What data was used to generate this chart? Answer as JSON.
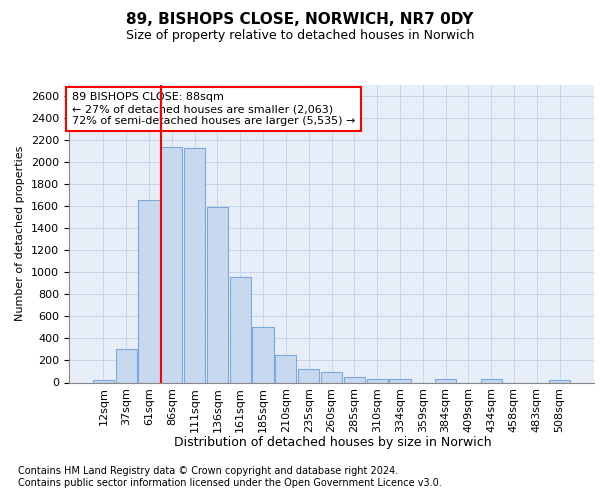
{
  "title": "89, BISHOPS CLOSE, NORWICH, NR7 0DY",
  "subtitle": "Size of property relative to detached houses in Norwich",
  "xlabel": "Distribution of detached houses by size in Norwich",
  "ylabel": "Number of detached properties",
  "footnote1": "Contains HM Land Registry data © Crown copyright and database right 2024.",
  "footnote2": "Contains public sector information licensed under the Open Government Licence v3.0.",
  "annotation_line1": "89 BISHOPS CLOSE: 88sqm",
  "annotation_line2": "← 27% of detached houses are smaller (2,063)",
  "annotation_line3": "72% of semi-detached houses are larger (5,535) →",
  "bar_color": "#c8d8ee",
  "bar_edge_color": "#7aaadd",
  "categories": [
    "12sqm",
    "37sqm",
    "61sqm",
    "86sqm",
    "111sqm",
    "136sqm",
    "161sqm",
    "185sqm",
    "210sqm",
    "235sqm",
    "260sqm",
    "285sqm",
    "310sqm",
    "334sqm",
    "359sqm",
    "384sqm",
    "409sqm",
    "434sqm",
    "458sqm",
    "483sqm",
    "508sqm"
  ],
  "values": [
    22,
    300,
    1660,
    2140,
    2130,
    1590,
    960,
    505,
    250,
    120,
    95,
    50,
    30,
    30,
    0,
    30,
    0,
    30,
    0,
    0,
    22
  ],
  "red_line_bin_index": 3,
  "ylim": [
    0,
    2700
  ],
  "ytick_interval": 200,
  "grid_color": "#c8d4e8",
  "background_color": "#e8eef8",
  "title_fontsize": 11,
  "subtitle_fontsize": 9,
  "ylabel_fontsize": 8,
  "xlabel_fontsize": 9,
  "tick_fontsize": 8,
  "xtick_fontsize": 8,
  "annotation_fontsize": 8,
  "footnote_fontsize": 7
}
